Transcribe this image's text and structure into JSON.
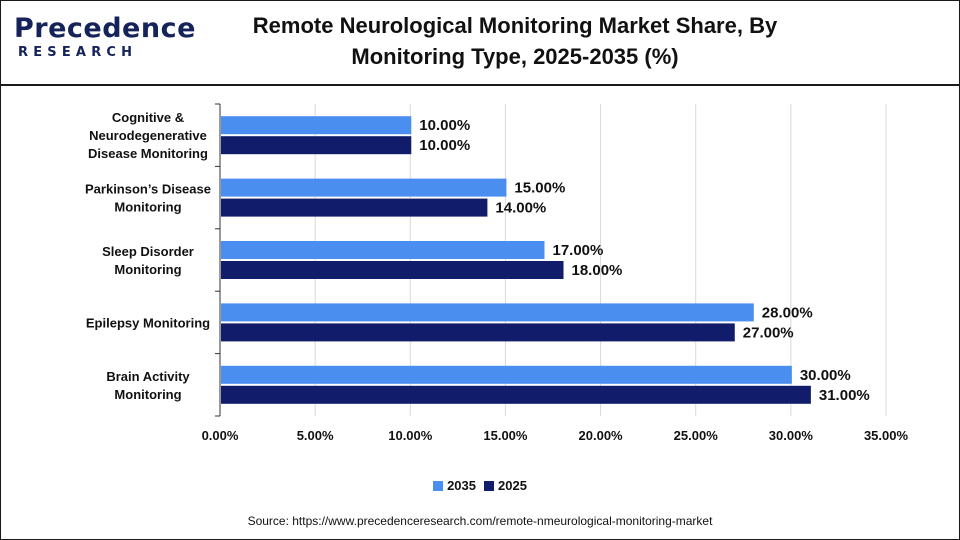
{
  "logo": {
    "top": "Precedence",
    "bottom": "RESEARCH"
  },
  "title_line1": "Remote Neurological Monitoring Market Share, By",
  "title_line2": "Monitoring Type, 2025-2035 (%)",
  "source": "Source: https://www.precedenceresearch.com/remote-nmeurological-monitoring-market",
  "colors": {
    "2035": "#4a8ff0",
    "2025": "#111d6b",
    "grid": "#d9d9d9",
    "axis": "#333333"
  },
  "chart_data": {
    "type": "bar",
    "orientation": "horizontal",
    "categories": [
      [
        "Cognitive &",
        "Neurodegenerative",
        "Disease Monitoring"
      ],
      [
        "Parkinson’s Disease",
        "Monitoring"
      ],
      [
        "Sleep Disorder",
        "Monitoring"
      ],
      [
        "Epilepsy Monitoring"
      ],
      [
        "Brain Activity",
        "Monitoring"
      ]
    ],
    "series": [
      {
        "name": "2035",
        "values": [
          10.0,
          15.0,
          17.0,
          28.0,
          30.0
        ],
        "labels": [
          "10.00%",
          "15.00%",
          "17.00%",
          "28.00%",
          "30.00%"
        ]
      },
      {
        "name": "2025",
        "values": [
          10.0,
          14.0,
          18.0,
          27.0,
          31.0
        ],
        "labels": [
          "10.00%",
          "14.00%",
          "18.00%",
          "27.00%",
          "31.00%"
        ]
      }
    ],
    "xlim": [
      0,
      35
    ],
    "xticks": [
      "0.00%",
      "5.00%",
      "10.00%",
      "15.00%",
      "20.00%",
      "25.00%",
      "30.00%",
      "35.00%"
    ],
    "grid": true,
    "legend": "bottom-center"
  }
}
